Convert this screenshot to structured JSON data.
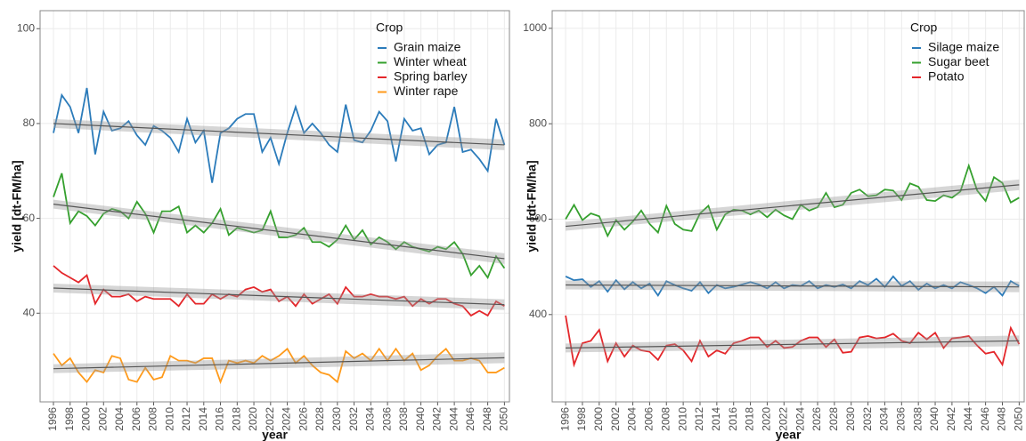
{
  "chart_data": [
    {
      "type": "line",
      "xlabel": "year",
      "ylabel": "yield [dt-FM/ha]",
      "legend_title": "Crop",
      "legend": "top-right",
      "grid": true,
      "xlim": [
        1994.4,
        2050.6
      ],
      "ylim": [
        21.3,
        103.8
      ],
      "yticks": [
        40,
        60,
        80,
        100
      ],
      "xticks": [
        1996,
        1998,
        2000,
        2002,
        2004,
        2006,
        2008,
        2010,
        2012,
        2014,
        2016,
        2018,
        2020,
        2022,
        2024,
        2026,
        2028,
        2030,
        2032,
        2034,
        2036,
        2038,
        2040,
        2042,
        2044,
        2046,
        2048,
        2050
      ],
      "x": [
        1996,
        1997,
        1998,
        1999,
        2000,
        2001,
        2002,
        2003,
        2004,
        2005,
        2006,
        2007,
        2008,
        2009,
        2010,
        2011,
        2012,
        2013,
        2014,
        2015,
        2016,
        2017,
        2018,
        2019,
        2020,
        2021,
        2022,
        2023,
        2024,
        2025,
        2026,
        2027,
        2028,
        2029,
        2030,
        2031,
        2032,
        2033,
        2034,
        2035,
        2036,
        2037,
        2038,
        2039,
        2040,
        2041,
        2042,
        2043,
        2044,
        2045,
        2046,
        2047,
        2048,
        2049,
        2050
      ],
      "series": [
        {
          "name": "Grain maize",
          "color": "#2b7bba",
          "trend": [
            80,
            75.5
          ],
          "values": [
            78,
            86,
            83.5,
            78,
            87.5,
            73.5,
            82.5,
            78.5,
            79,
            80.5,
            77.5,
            75.5,
            79.5,
            78.5,
            77,
            74,
            81,
            76,
            78.5,
            67.5,
            78,
            79,
            81,
            82,
            82,
            74,
            77,
            71.5,
            78,
            83.5,
            78,
            80,
            78,
            75.5,
            74,
            84,
            76.5,
            76,
            78.5,
            82.5,
            80.5,
            72,
            81,
            78.5,
            79,
            73.5,
            75.5,
            76,
            83.5,
            74,
            74.5,
            72.5,
            70,
            81,
            75.5
          ]
        },
        {
          "name": "Winter wheat",
          "color": "#35a02e",
          "trend": [
            63,
            51.5
          ],
          "values": [
            64.5,
            69.5,
            59,
            61.5,
            60.5,
            58.5,
            61,
            62,
            61.5,
            60,
            63.5,
            61,
            57,
            61.5,
            61.5,
            62.5,
            57,
            58.5,
            57,
            59,
            62,
            56.5,
            58,
            57.5,
            57,
            57.5,
            61.5,
            56,
            56,
            56.5,
            58,
            55,
            55,
            54,
            55.5,
            58.5,
            55.5,
            57.5,
            54.5,
            56,
            55,
            53.5,
            55,
            54,
            53.5,
            53,
            54,
            53.5,
            55,
            52.5,
            48,
            50,
            47.5,
            52,
            49.5
          ]
        },
        {
          "name": "Spring barley",
          "color": "#e4262a",
          "trend": [
            45.3,
            41.8
          ],
          "values": [
            50,
            48.5,
            47.5,
            46.5,
            48,
            42,
            45,
            43.5,
            43.5,
            44,
            42.5,
            43.5,
            43,
            43,
            43,
            41.5,
            44,
            42,
            42,
            44,
            43,
            44,
            43.5,
            45,
            45.5,
            44.5,
            45,
            42.5,
            43.5,
            41.5,
            44,
            42,
            43,
            44,
            42,
            45.5,
            43.5,
            43.5,
            44,
            43.5,
            43.5,
            43,
            43.5,
            41.5,
            43,
            42,
            43,
            43,
            42,
            41.5,
            39.5,
            40.5,
            39.5,
            42.5,
            41.5
          ]
        },
        {
          "name": "Winter rape",
          "color": "#ff9a1a",
          "trend": [
            28.3,
            30.6
          ],
          "values": [
            31.5,
            29,
            30.5,
            27.5,
            25.5,
            28,
            27.5,
            31,
            30.5,
            26,
            25.5,
            28.5,
            26,
            26.5,
            31,
            30,
            30,
            29.5,
            30.5,
            30.5,
            25.5,
            30,
            29.5,
            30,
            29.5,
            31,
            30,
            31,
            32.5,
            29.5,
            31,
            29,
            27.5,
            27,
            25.5,
            32,
            30.5,
            31.5,
            30,
            32.5,
            30,
            32.5,
            30,
            31.5,
            28,
            29,
            31,
            32.5,
            30,
            30,
            30.5,
            30,
            27.5,
            27.5,
            28.5
          ]
        }
      ]
    },
    {
      "type": "line",
      "xlabel": "year",
      "ylabel": "yield [dt-FM/ha]",
      "legend_title": "Crop",
      "legend": "top-right",
      "grid": true,
      "xlim": [
        1994.4,
        2050.6
      ],
      "ylim": [
        217,
        1037
      ],
      "yticks": [
        400,
        600,
        800,
        1000
      ],
      "xticks": [
        1996,
        1998,
        2000,
        2002,
        2004,
        2006,
        2008,
        2010,
        2012,
        2014,
        2016,
        2018,
        2020,
        2022,
        2024,
        2026,
        2028,
        2030,
        2032,
        2034,
        2036,
        2038,
        2040,
        2042,
        2044,
        2046,
        2048,
        2050
      ],
      "x": [
        1996,
        1997,
        1998,
        1999,
        2000,
        2001,
        2002,
        2003,
        2004,
        2005,
        2006,
        2007,
        2008,
        2009,
        2010,
        2011,
        2012,
        2013,
        2014,
        2015,
        2016,
        2017,
        2018,
        2019,
        2020,
        2021,
        2022,
        2023,
        2024,
        2025,
        2026,
        2027,
        2028,
        2029,
        2030,
        2031,
        2032,
        2033,
        2034,
        2035,
        2036,
        2037,
        2038,
        2039,
        2040,
        2041,
        2042,
        2043,
        2044,
        2045,
        2046,
        2047,
        2048,
        2049,
        2050
      ],
      "series": [
        {
          "name": "Silage maize",
          "color": "#2b7bba",
          "trend": [
            462,
            458
          ],
          "values": [
            480,
            472,
            474,
            458,
            470,
            448,
            472,
            453,
            468,
            455,
            465,
            440,
            470,
            462,
            455,
            450,
            468,
            445,
            462,
            455,
            458,
            463,
            468,
            463,
            455,
            468,
            455,
            462,
            460,
            470,
            455,
            462,
            458,
            463,
            455,
            470,
            462,
            475,
            458,
            480,
            460,
            470,
            452,
            465,
            455,
            462,
            455,
            468,
            462,
            455,
            445,
            458,
            440,
            470,
            460
          ]
        },
        {
          "name": "Sugar beet",
          "color": "#35a02e",
          "trend": [
            585,
            672
          ],
          "values": [
            600,
            630,
            598,
            612,
            606,
            565,
            598,
            578,
            595,
            618,
            590,
            572,
            628,
            590,
            578,
            575,
            612,
            628,
            578,
            610,
            620,
            618,
            610,
            618,
            604,
            620,
            608,
            600,
            630,
            618,
            625,
            655,
            625,
            630,
            655,
            662,
            648,
            650,
            662,
            660,
            640,
            675,
            668,
            640,
            638,
            650,
            645,
            658,
            712,
            660,
            638,
            688,
            676,
            635,
            645
          ]
        },
        {
          "name": "Potato",
          "color": "#e4262a",
          "trend": [
            330,
            345
          ],
          "values": [
            398,
            295,
            340,
            345,
            368,
            302,
            340,
            312,
            335,
            325,
            322,
            305,
            335,
            338,
            325,
            302,
            345,
            312,
            325,
            318,
            340,
            345,
            352,
            352,
            332,
            345,
            330,
            332,
            345,
            352,
            352,
            332,
            348,
            320,
            322,
            352,
            355,
            350,
            352,
            360,
            345,
            340,
            362,
            348,
            362,
            330,
            350,
            352,
            355,
            335,
            318,
            322,
            295,
            372,
            338
          ]
        }
      ]
    }
  ]
}
